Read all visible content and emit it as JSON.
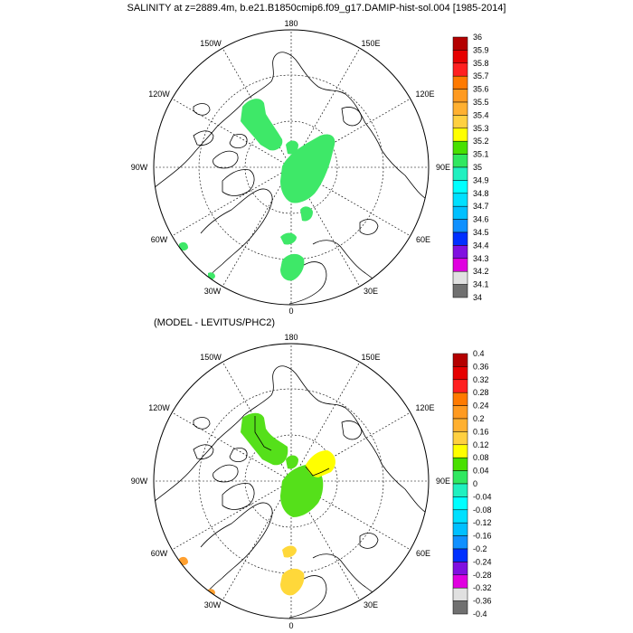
{
  "figure": {
    "top_title": "SALINITY at z=2889.4m, b.e21.B1850cmip6.f09_g17.DAMIP-hist-sol.004 [1985-2014]",
    "bottom_title": "(MODEL - LEVITUS/PHC2)"
  },
  "map_labels": {
    "deg180": "180",
    "deg150w": "150W",
    "deg150e": "150E",
    "deg120w": "120W",
    "deg120e": "120E",
    "deg90w": "90W",
    "deg90e": "90E",
    "deg60w": "60W",
    "deg60e": "60E",
    "deg30w": "30W",
    "deg30e": "30E",
    "deg0": "0"
  },
  "top_colorbar": {
    "labels": [
      "36",
      "35.9",
      "35.8",
      "35.7",
      "35.6",
      "35.5",
      "35.4",
      "35.3",
      "35.2",
      "35.1",
      "35",
      "34.9",
      "34.8",
      "34.7",
      "34.6",
      "34.5",
      "34.4",
      "34.3",
      "34.2",
      "34.1",
      "34"
    ],
    "colors": [
      "#b40000",
      "#e60000",
      "#ff2020",
      "#ff7a00",
      "#ff9a20",
      "#ffb030",
      "#ffd040",
      "#ffff00",
      "#48e000",
      "#30e860",
      "#20f0c0",
      "#00ffff",
      "#00e0ff",
      "#00c0ff",
      "#1090ff",
      "#0030ff",
      "#8010e0",
      "#e000e0",
      "#e0e0e0",
      "#707070"
    ]
  },
  "bottom_colorbar": {
    "labels": [
      "0.4",
      "0.36",
      "0.32",
      "0.28",
      "0.24",
      "0.2",
      "0.16",
      "0.12",
      "0.08",
      "0.04",
      "0",
      "-0.04",
      "-0.08",
      "-0.12",
      "-0.16",
      "-0.2",
      "-0.24",
      "-0.28",
      "-0.32",
      "-0.36",
      "-0.4"
    ],
    "colors": [
      "#b40000",
      "#e60000",
      "#ff2020",
      "#ff7a00",
      "#ff9a20",
      "#ffb030",
      "#ffd040",
      "#ffff00",
      "#48e000",
      "#30e860",
      "#20f0c0",
      "#00ffff",
      "#00e0ff",
      "#00c0ff",
      "#1090ff",
      "#0030ff",
      "#8010e0",
      "#e000e0",
      "#e0e0e0",
      "#707070"
    ]
  },
  "colors": {
    "salinity_field": "#3ee868",
    "anomaly_green": "#55e01a",
    "anomaly_yellow": "#ffff00",
    "anomaly_gold": "#ffd83a",
    "anomaly_orange": "#ffa030"
  }
}
